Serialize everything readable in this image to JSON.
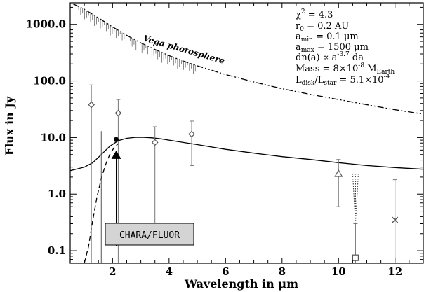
{
  "chart_data": {
    "type": "scatter",
    "xlabel_main": "Wavelength in ",
    "xlabel_unit": "μm",
    "ylabel": "Flux in Jy",
    "xlim": [
      0.5,
      13
    ],
    "ylim": [
      0.06,
      2400
    ],
    "y_scale": "log",
    "x_ticks": [
      2,
      4,
      6,
      8,
      10,
      12
    ],
    "x_tick_labels": [
      "2",
      "4",
      "6",
      "8",
      "10",
      "12"
    ],
    "y_ticks": [
      0.1,
      1,
      10,
      100,
      1000
    ],
    "y_tick_labels": [
      "0.1",
      "1.0",
      "10.0",
      "100.0",
      "1000.0"
    ],
    "photosphere_label": "Vega photosphere",
    "instrument_label": "CHARA/FLUOR",
    "annotations": {
      "chi2": {
        "name": "χ",
        "sup": "2",
        "value": " = 4.3"
      },
      "r0": {
        "name": "r",
        "sub": "0",
        "value": " = 0.2 AU"
      },
      "amin": {
        "name": "a",
        "sub": "min",
        "value": " = 0.1 μm"
      },
      "amax": {
        "name": "a",
        "sub": "max",
        "value": " = 1500 μm"
      },
      "dn": {
        "prefix": "dn(a) ∝ a",
        "sup": "-3.7",
        "suffix": " da"
      },
      "mass": {
        "prefix": "Mass = 8×10",
        "sup": "-8",
        "suffix": " M",
        "sub": "Earth"
      },
      "ldisk": {
        "name": "L",
        "sub1": "disk",
        "mid": "/L",
        "sub2": "star",
        "value": " = 5.1×10",
        "sup": "-4"
      }
    },
    "series": [
      {
        "kind": "photosphere",
        "style": "dash-dot-dot",
        "x": [
          0.6,
          1.0,
          1.5,
          2.0,
          2.5,
          3.0,
          3.5,
          4.0,
          4.5,
          5.0,
          6.0,
          7.0,
          8.0,
          9.0,
          10.0,
          11.0,
          12.0,
          13.0
        ],
        "y": [
          2300,
          1850,
          1300,
          900,
          640,
          470,
          360,
          280,
          225,
          185,
          130,
          96,
          73,
          58,
          47,
          38,
          31,
          26
        ]
      },
      {
        "kind": "disk model",
        "style": "solid",
        "x": [
          0.5,
          1.0,
          1.3,
          1.6,
          1.9,
          2.2,
          2.5,
          2.8,
          3.1,
          3.4,
          3.7,
          4.0,
          4.5,
          5.0,
          5.5,
          6.0,
          7.0,
          8.0,
          9.0,
          10.0,
          11.0,
          12.0,
          13.0
        ],
        "y": [
          2.6,
          3.0,
          3.6,
          5.0,
          7.0,
          8.8,
          9.7,
          10.1,
          10.1,
          9.9,
          9.5,
          9.0,
          8.2,
          7.5,
          6.8,
          6.2,
          5.3,
          4.6,
          4.1,
          3.6,
          3.2,
          2.95,
          2.75
        ]
      },
      {
        "kind": "disk model short wavelength",
        "style": "dashed",
        "x": [
          1.0,
          1.15,
          1.3,
          1.45,
          1.6,
          1.75,
          1.9,
          2.05,
          2.2
        ],
        "y": [
          0.06,
          0.12,
          0.35,
          0.9,
          1.9,
          3.3,
          5.0,
          6.6,
          7.8
        ]
      }
    ],
    "points": [
      {
        "marker": "diamond",
        "x": 1.25,
        "y": 38,
        "err_low": 0.06,
        "err_high": 85
      },
      {
        "marker": "diamond",
        "x": 2.2,
        "y": 27,
        "err_low": 0.06,
        "err_high": 47
      },
      {
        "marker": "diamond",
        "x": 3.5,
        "y": 8.2,
        "err_low": 0.26,
        "err_high": 15.5
      },
      {
        "marker": "diamond",
        "x": 4.8,
        "y": 11.5,
        "err_low": 3.2,
        "err_high": 19.5
      },
      {
        "marker": "triangle-open",
        "x": 10.0,
        "y": 2.3,
        "err_low": 0.6,
        "err_high": 4.1
      },
      {
        "marker": "square",
        "x": 10.6,
        "y": 0.075,
        "err_low": 0.06,
        "err_high": 0.3
      },
      {
        "marker": "x",
        "x": 12.0,
        "y": 0.35,
        "err_low": 0.06,
        "err_high": 1.8
      },
      {
        "marker": "circle-filled",
        "x": 2.13,
        "y": 9.2,
        "err_low": 8.5,
        "err_high": 10.0
      },
      {
        "marker": "triangle-filled",
        "x": 2.13,
        "y": 4.7,
        "arrow_to": 0.12
      }
    ],
    "limit_segment": {
      "x0": 10.5,
      "x1": 10.7,
      "y_top": 2.3,
      "y_bottom": 0.3
    },
    "extra_vertical": {
      "x": 1.6,
      "y_low": 0.06,
      "y_high": 13
    }
  }
}
